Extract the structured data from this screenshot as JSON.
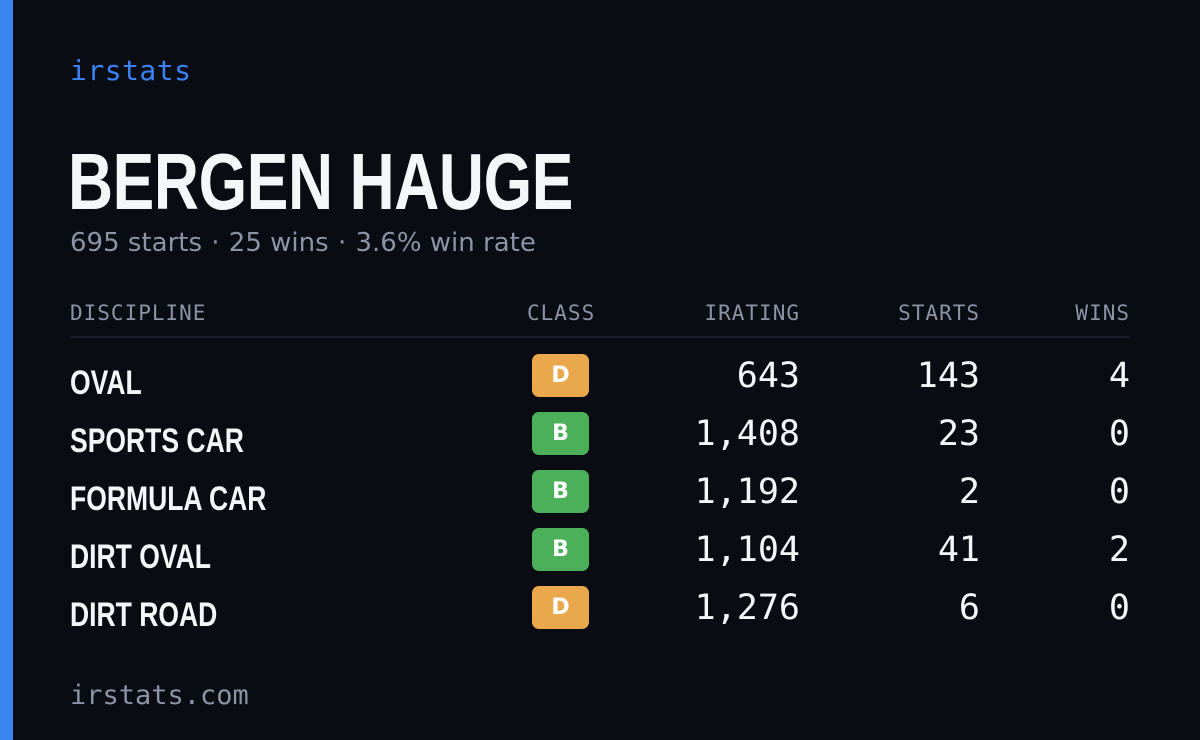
{
  "brand": "irstats",
  "driver": {
    "name": "BERGEN HAUGE",
    "starts_text": "695 starts",
    "wins_text": "25 wins",
    "winrate_text": "3.6% win rate",
    "separator": "·"
  },
  "table": {
    "headers": {
      "discipline": "DISCIPLINE",
      "class": "CLASS",
      "irating": "IRATING",
      "starts": "STARTS",
      "wins": "WINS"
    },
    "rows": [
      {
        "discipline": "OVAL",
        "class": "D",
        "irating": "643",
        "starts": "143",
        "wins": "4"
      },
      {
        "discipline": "SPORTS CAR",
        "class": "B",
        "irating": "1,408",
        "starts": "23",
        "wins": "0"
      },
      {
        "discipline": "FORMULA CAR",
        "class": "B",
        "irating": "1,192",
        "starts": "2",
        "wins": "0"
      },
      {
        "discipline": "DIRT OVAL",
        "class": "B",
        "irating": "1,104",
        "starts": "41",
        "wins": "2"
      },
      {
        "discipline": "DIRT ROAD",
        "class": "D",
        "irating": "1,276",
        "starts": "6",
        "wins": "0"
      }
    ]
  },
  "class_colors": {
    "D": "#e9a84b",
    "B": "#4cb05a"
  },
  "accent_color": "#3a86f0",
  "footer": "irstats.com"
}
